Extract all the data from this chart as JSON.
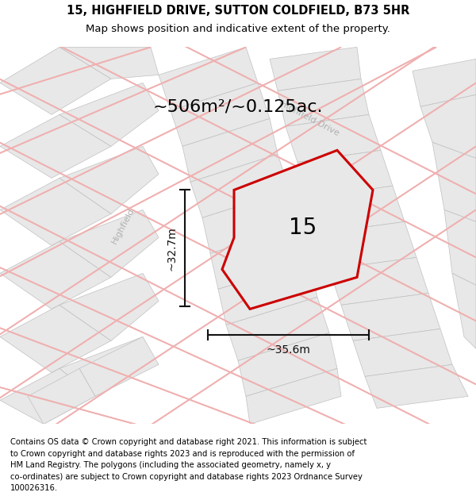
{
  "title": "15, HIGHFIELD DRIVE, SUTTON COLDFIELD, B73 5HR",
  "subtitle": "Map shows position and indicative extent of the property.",
  "footer_lines": [
    "Contains OS data © Crown copyright and database right 2021. This information is subject",
    "to Crown copyright and database rights 2023 and is reproduced with the permission of",
    "HM Land Registry. The polygons (including the associated geometry, namely x, y",
    "co-ordinates) are subject to Crown copyright and database rights 2023 Ordnance Survey",
    "100026316."
  ],
  "area_label": "~506m²/~0.125ac.",
  "width_label": "~35.6m",
  "height_label": "~32.7m",
  "property_number": "15",
  "map_bg": "#f7f7f5",
  "road_pink": "#f0b0b0",
  "road_gray": "#c8c8c8",
  "block_fill": "#e8e8e8",
  "block_edge": "#c0c0c0",
  "property_fill": "#e8e8e8",
  "property_outline": "#cc0000",
  "dim_color": "#111111",
  "road_label_color": "#b0b0b0",
  "title_fontsize": 10.5,
  "subtitle_fontsize": 9.5,
  "footer_fontsize": 7.2,
  "area_fontsize": 16,
  "num_fontsize": 20,
  "dim_fontsize": 10
}
